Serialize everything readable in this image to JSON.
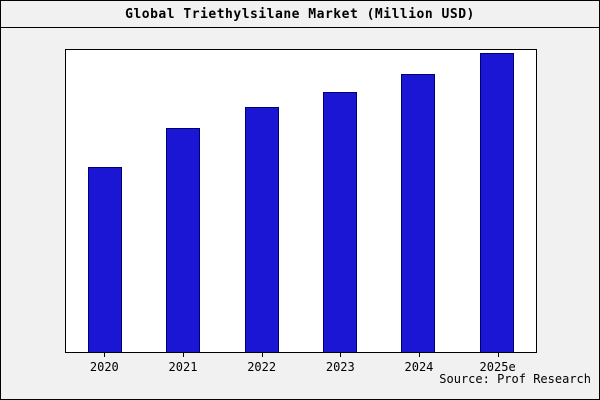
{
  "title": "Global Triethylsilane Market (Million USD)",
  "source": "Source: Prof Research",
  "colors": {
    "bar_fill": "#1a16d4",
    "bar_border": "#00006e",
    "plot_bg": "#ffffff",
    "page_bg": "#f1f1f1"
  },
  "chart_data": {
    "type": "bar",
    "title": "Global Triethylsilane Market (Million USD)",
    "categories": [
      "2020",
      "2021",
      "2022",
      "2023",
      "2024",
      "2025e"
    ],
    "values": [
      62,
      75,
      82,
      87,
      93,
      100
    ],
    "xlabel": "",
    "ylabel": "",
    "ylim": [
      0,
      101
    ],
    "grid": false,
    "legend": "none",
    "annotation": "Source: Prof Research"
  }
}
